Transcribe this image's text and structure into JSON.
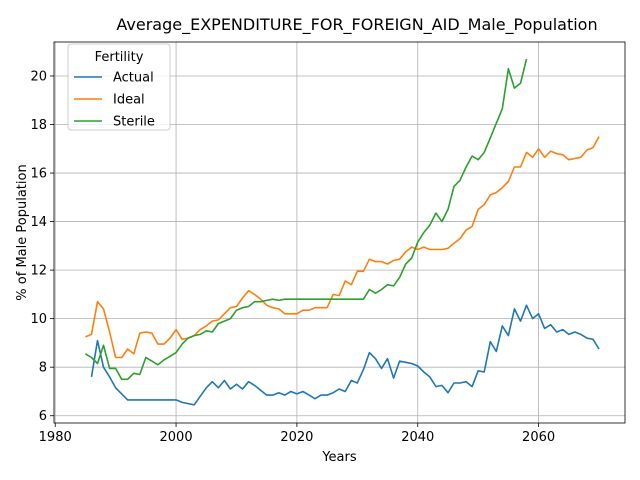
{
  "chart_data": {
    "type": "line",
    "title": "Average_EXPENDITURE_FOR_FOREIGN_AID_Male_Population",
    "xlabel": "Years",
    "ylabel": "% of Male Population",
    "xlim": [
      1979.8,
      2074.3
    ],
    "ylim": [
      5.7,
      21.4
    ],
    "xticks": [
      1980,
      2000,
      2020,
      2040,
      2060
    ],
    "yticks": [
      6,
      8,
      10,
      12,
      14,
      16,
      18,
      20
    ],
    "grid": true,
    "legend": {
      "title": "Fertility",
      "placement": "top-left"
    },
    "series": [
      {
        "name": "Actual",
        "color": "#1f77b4",
        "x": [
          1986,
          1987,
          1988,
          1989,
          1990,
          1991,
          1992,
          1993,
          1994,
          1995,
          1996,
          1997,
          1998,
          1999,
          2000,
          2001,
          2002,
          2003,
          2004,
          2005,
          2006,
          2007,
          2008,
          2009,
          2010,
          2011,
          2012,
          2013,
          2014,
          2015,
          2016,
          2017,
          2018,
          2019,
          2020,
          2021,
          2022,
          2023,
          2024,
          2025,
          2026,
          2027,
          2028,
          2029,
          2030,
          2031,
          2032,
          2033,
          2034,
          2035,
          2036,
          2037,
          2038,
          2039,
          2040,
          2041,
          2042,
          2043,
          2044,
          2045,
          2046,
          2047,
          2048,
          2049,
          2050,
          2051,
          2052,
          2053,
          2054,
          2055,
          2056,
          2057,
          2058,
          2059,
          2060,
          2061,
          2062,
          2063,
          2064,
          2065,
          2066,
          2067,
          2068,
          2069,
          2070
        ],
        "values": [
          7.6,
          9.1,
          8.0,
          7.6,
          7.15,
          6.9,
          6.65,
          6.65,
          6.65,
          6.65,
          6.65,
          6.65,
          6.65,
          6.65,
          6.65,
          6.55,
          6.5,
          6.45,
          6.8,
          7.15,
          7.4,
          7.15,
          7.45,
          7.1,
          7.3,
          7.1,
          7.4,
          7.25,
          7.05,
          6.85,
          6.85,
          6.95,
          6.85,
          7.0,
          6.9,
          7.0,
          6.85,
          6.7,
          6.85,
          6.85,
          6.95,
          7.1,
          7.0,
          7.45,
          7.35,
          7.9,
          8.6,
          8.35,
          7.95,
          8.35,
          7.55,
          8.25,
          8.2,
          8.15,
          8.05,
          7.8,
          7.6,
          7.2,
          7.25,
          6.95,
          7.35,
          7.35,
          7.4,
          7.2,
          7.85,
          7.8,
          9.05,
          8.65,
          9.7,
          9.3,
          10.4,
          9.9,
          10.55,
          10.0,
          10.2,
          9.6,
          9.75,
          9.45,
          9.55,
          9.35,
          9.45,
          9.35,
          9.2,
          9.15,
          8.75
        ]
      },
      {
        "name": "Ideal",
        "color": "#ff7f0e",
        "x": [
          1985,
          1986,
          1987,
          1988,
          1989,
          1990,
          1991,
          1992,
          1993,
          1994,
          1995,
          1996,
          1997,
          1998,
          1999,
          2000,
          2001,
          2002,
          2003,
          2004,
          2005,
          2006,
          2007,
          2008,
          2009,
          2010,
          2011,
          2012,
          2013,
          2014,
          2015,
          2016,
          2017,
          2018,
          2019,
          2020,
          2021,
          2022,
          2023,
          2024,
          2025,
          2026,
          2027,
          2028,
          2029,
          2030,
          2031,
          2032,
          2033,
          2034,
          2035,
          2036,
          2037,
          2038,
          2039,
          2040,
          2041,
          2042,
          2043,
          2044,
          2045,
          2046,
          2047,
          2048,
          2049,
          2050,
          2051,
          2052,
          2053,
          2054,
          2055,
          2056,
          2057,
          2058,
          2059,
          2060,
          2061,
          2062,
          2063,
          2064,
          2065,
          2066,
          2067,
          2068,
          2069,
          2070
        ],
        "values": [
          9.25,
          9.35,
          10.7,
          10.4,
          9.45,
          8.4,
          8.4,
          8.75,
          8.55,
          9.4,
          9.45,
          9.4,
          8.95,
          8.95,
          9.2,
          9.55,
          9.15,
          9.2,
          9.3,
          9.55,
          9.7,
          9.9,
          9.95,
          10.2,
          10.45,
          10.5,
          10.85,
          11.15,
          11.0,
          10.8,
          10.55,
          10.45,
          10.4,
          10.2,
          10.2,
          10.2,
          10.35,
          10.35,
          10.45,
          10.45,
          10.45,
          11.0,
          10.95,
          11.55,
          11.4,
          11.95,
          11.95,
          12.45,
          12.35,
          12.35,
          12.25,
          12.4,
          12.45,
          12.75,
          12.95,
          12.85,
          12.95,
          12.85,
          12.85,
          12.85,
          12.9,
          13.1,
          13.3,
          13.65,
          13.8,
          14.5,
          14.7,
          15.1,
          15.2,
          15.4,
          15.65,
          16.25,
          16.25,
          16.85,
          16.65,
          17.0,
          16.65,
          16.9,
          16.8,
          16.75,
          16.55,
          16.6,
          16.65,
          16.95,
          17.05,
          17.5
        ]
      },
      {
        "name": "Sterile",
        "color": "#2ca02c",
        "x": [
          1985,
          1986,
          1987,
          1988,
          1989,
          1990,
          1991,
          1992,
          1993,
          1994,
          1995,
          1996,
          1997,
          1998,
          1999,
          2000,
          2001,
          2002,
          2003,
          2004,
          2005,
          2006,
          2007,
          2008,
          2009,
          2010,
          2011,
          2012,
          2013,
          2014,
          2015,
          2016,
          2017,
          2018,
          2019,
          2020,
          2021,
          2022,
          2023,
          2024,
          2025,
          2026,
          2027,
          2028,
          2029,
          2030,
          2031,
          2032,
          2033,
          2034,
          2035,
          2036,
          2037,
          2038,
          2039,
          2040,
          2041,
          2042,
          2043,
          2044,
          2045,
          2046,
          2047,
          2048,
          2049,
          2050,
          2051,
          2052,
          2053,
          2054,
          2055,
          2056,
          2057,
          2058
        ],
        "values": [
          8.55,
          8.4,
          8.15,
          8.9,
          7.95,
          7.95,
          7.5,
          7.5,
          7.75,
          7.7,
          8.4,
          8.25,
          8.1,
          8.3,
          8.45,
          8.6,
          8.95,
          9.2,
          9.3,
          9.35,
          9.5,
          9.45,
          9.8,
          9.9,
          10.0,
          10.35,
          10.45,
          10.5,
          10.7,
          10.7,
          10.75,
          10.8,
          10.75,
          10.8,
          10.8,
          10.8,
          10.8,
          10.8,
          10.8,
          10.8,
          10.8,
          10.8,
          10.8,
          10.8,
          10.8,
          10.8,
          10.8,
          11.2,
          11.05,
          11.2,
          11.4,
          11.35,
          11.7,
          12.25,
          12.5,
          13.15,
          13.55,
          13.85,
          14.35,
          14.0,
          14.5,
          15.45,
          15.7,
          16.25,
          16.7,
          16.55,
          16.85,
          17.45,
          18.05,
          18.65,
          20.3,
          19.5,
          19.7,
          20.7
        ]
      }
    ]
  }
}
